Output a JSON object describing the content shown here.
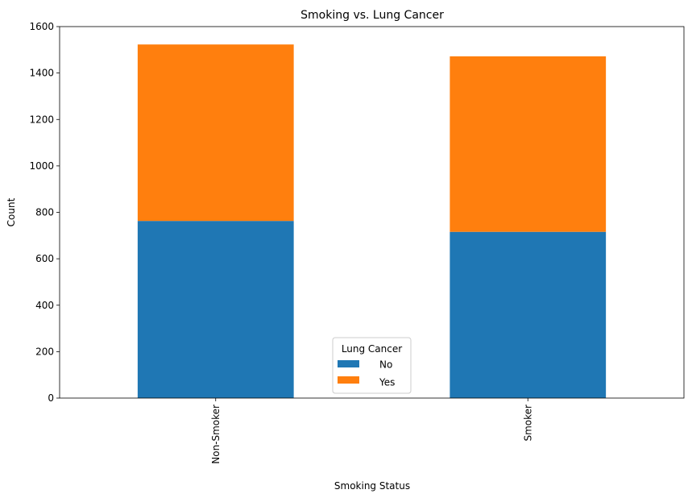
{
  "chart_data": {
    "type": "bar",
    "stacked": true,
    "title": "Smoking vs. Lung Cancer",
    "xlabel": "Smoking Status",
    "ylabel": "Count",
    "categories": [
      "Non-Smoker",
      "Smoker"
    ],
    "series": [
      {
        "name": "No",
        "color": "#1f77b4",
        "values": [
          763,
          716
        ]
      },
      {
        "name": "Yes",
        "color": "#ff7f0e",
        "values": [
          760,
          756
        ]
      }
    ],
    "ylim": [
      0,
      1600
    ],
    "yticks": [
      0,
      200,
      400,
      600,
      800,
      1000,
      1200,
      1400,
      1600
    ],
    "grid": false,
    "legend": {
      "title": "Lung Cancer",
      "placement": "lower-center"
    },
    "x_tick_rotation": "vertical"
  }
}
